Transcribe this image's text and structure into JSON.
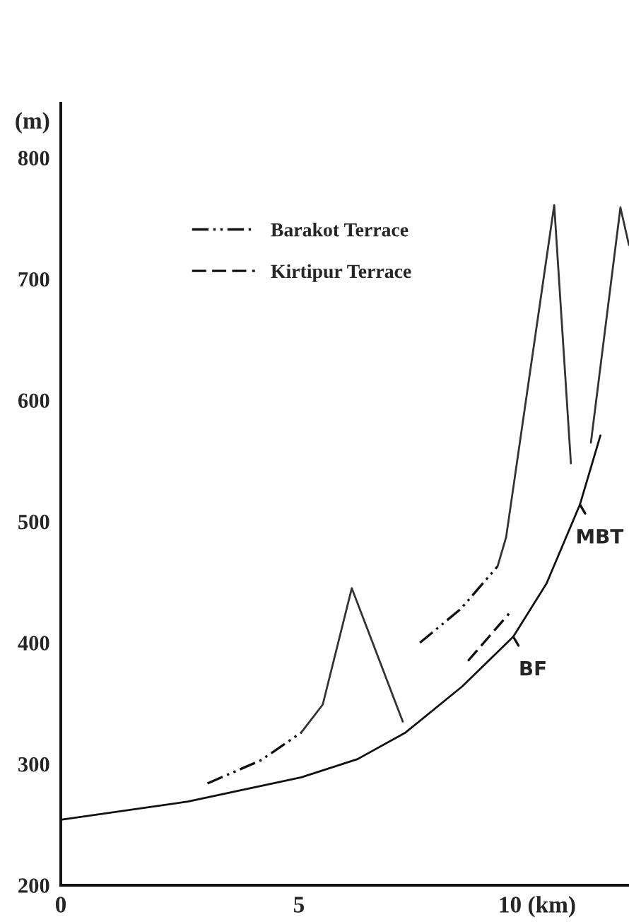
{
  "chart_data": {
    "type": "line",
    "ylabel": "(m)",
    "xlim": [
      0,
      11.93
    ],
    "ylim": [
      200,
      845
    ],
    "xticks": [
      0,
      5,
      {
        "value": 10,
        "label": "10 (km)"
      }
    ],
    "yticks": [
      200,
      300,
      400,
      500,
      600,
      700,
      800
    ],
    "grid": false,
    "legend": "top left",
    "series": [
      {
        "color": "#111111",
        "line_style": "solid",
        "x": [
          0,
          2.67,
          5.05,
          6.23,
          7.24,
          8.43,
          9.5,
          10.2,
          10.9,
          11.33
        ],
        "values": [
          254,
          269,
          289,
          304,
          326,
          364,
          405,
          449,
          514,
          571
        ]
      },
      {
        "name": "Barakot Terrace",
        "color": "#111111",
        "line_style": "dashdot",
        "x": [
          3.08,
          4.2,
          5.05,
          5.3,
          7.54,
          8.4,
          9.17
        ],
        "values": [
          284,
          303,
          326,
          null,
          400,
          428,
          463
        ]
      },
      {
        "name": "Kirtipur Terrace",
        "color": "#111111",
        "line_style": "dashed",
        "x": [
          8.55,
          9.41
        ],
        "values": [
          385,
          424
        ]
      },
      {
        "color": "#333333",
        "line_style": "solid",
        "x": [
          5.05,
          5.5,
          6.11,
          7.18,
          7.3,
          9.17,
          9.35,
          10.36,
          10.71,
          10.9,
          11.13,
          11.75,
          11.93
        ],
        "values": [
          326,
          349,
          445,
          335,
          null,
          463,
          487,
          761,
          548,
          null,
          565,
          759,
          728
        ]
      }
    ],
    "annotations": [
      {
        "text": "BF",
        "x": 9.5,
        "y": 405
      },
      {
        "text": "MBT",
        "x": 10.9,
        "y": 514
      }
    ]
  }
}
